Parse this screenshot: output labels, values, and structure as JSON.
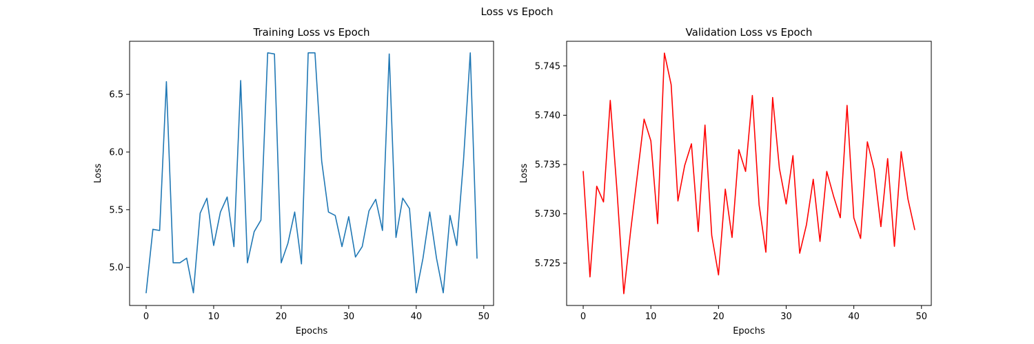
{
  "figure": {
    "suptitle": "Loss vs Epoch"
  },
  "chart_data": [
    {
      "type": "line",
      "title": "Training Loss vs Epoch",
      "xlabel": "Epochs",
      "ylabel": "Loss",
      "xlim": [
        -2.45,
        51.45
      ],
      "ylim": [
        4.67,
        6.96
      ],
      "xticks": [
        0,
        10,
        20,
        30,
        40,
        50
      ],
      "yticks": [
        5.0,
        5.5,
        6.0,
        6.5
      ],
      "grid": false,
      "series": [
        {
          "color": "#1f77b4",
          "x": [
            0,
            1,
            2,
            3,
            4,
            5,
            6,
            7,
            8,
            9,
            10,
            11,
            12,
            13,
            14,
            15,
            16,
            17,
            18,
            19,
            20,
            21,
            22,
            23,
            24,
            25,
            26,
            27,
            28,
            29,
            30,
            31,
            32,
            33,
            34,
            35,
            36,
            37,
            38,
            39,
            40,
            41,
            42,
            43,
            44,
            45,
            46,
            47,
            48,
            49
          ],
          "values": [
            4.78,
            5.33,
            5.32,
            6.61,
            5.04,
            5.04,
            5.08,
            4.78,
            5.47,
            5.6,
            5.19,
            5.48,
            5.61,
            5.18,
            6.62,
            5.04,
            5.31,
            5.41,
            6.86,
            6.85,
            5.04,
            5.21,
            5.48,
            5.03,
            6.86,
            6.86,
            5.92,
            5.48,
            5.45,
            5.18,
            5.44,
            5.09,
            5.18,
            5.49,
            5.59,
            5.32,
            6.85,
            5.26,
            5.6,
            5.51,
            4.78,
            5.08,
            5.48,
            5.08,
            4.78,
            5.45,
            5.19,
            5.93,
            6.86,
            5.08
          ]
        }
      ]
    },
    {
      "type": "line",
      "title": "Validation Loss vs Epoch",
      "xlabel": "Epochs",
      "ylabel": "Loss",
      "xlim": [
        -2.45,
        51.45
      ],
      "ylim": [
        5.7207,
        5.7475
      ],
      "xticks": [
        0,
        10,
        20,
        30,
        40,
        50
      ],
      "yticks": [
        5.725,
        5.73,
        5.735,
        5.74,
        5.745
      ],
      "grid": false,
      "series": [
        {
          "color": "#ff0000",
          "x": [
            0,
            1,
            2,
            3,
            4,
            5,
            6,
            7,
            8,
            9,
            10,
            11,
            12,
            13,
            14,
            15,
            16,
            17,
            18,
            19,
            20,
            21,
            22,
            23,
            24,
            25,
            26,
            27,
            28,
            29,
            30,
            31,
            32,
            33,
            34,
            35,
            36,
            37,
            38,
            39,
            40,
            41,
            42,
            43,
            44,
            45,
            46,
            47,
            48,
            49
          ],
          "values": [
            5.7343,
            5.7236,
            5.7328,
            5.7312,
            5.7415,
            5.7323,
            5.7219,
            5.7282,
            5.7339,
            5.7396,
            5.7374,
            5.729,
            5.7463,
            5.7431,
            5.7313,
            5.7349,
            5.7371,
            5.7282,
            5.739,
            5.7278,
            5.7238,
            5.7325,
            5.7276,
            5.7365,
            5.7343,
            5.742,
            5.7309,
            5.7261,
            5.7418,
            5.7346,
            5.731,
            5.7359,
            5.726,
            5.7289,
            5.7335,
            5.7272,
            5.7343,
            5.7318,
            5.7296,
            5.741,
            5.7296,
            5.7275,
            5.7373,
            5.7345,
            5.7287,
            5.7356,
            5.7267,
            5.7363,
            5.7315,
            5.7284
          ]
        }
      ]
    }
  ]
}
